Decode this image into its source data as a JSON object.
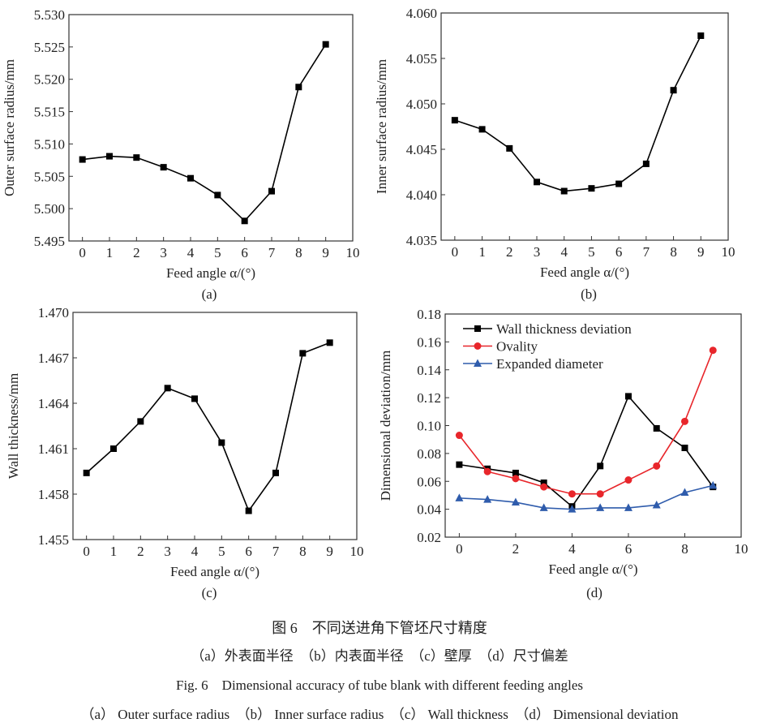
{
  "chart_data": [
    {
      "type": "line",
      "panel": "(a)",
      "xlabel": "Feed angle  α/(°)",
      "ylabel": "Outer surface radius/mm",
      "x": [
        0,
        1,
        2,
        3,
        4,
        5,
        6,
        7,
        8,
        9
      ],
      "xlim": [
        -0.5,
        10
      ],
      "xticks": [
        0,
        1,
        2,
        3,
        4,
        5,
        6,
        7,
        8,
        9,
        10
      ],
      "ylim": [
        5.495,
        5.53
      ],
      "yticks": [
        "5.495",
        "5.500",
        "5.505",
        "5.510",
        "5.515",
        "5.520",
        "5.525",
        "5.530"
      ],
      "grid": false,
      "series": [
        {
          "values": [
            5.5076,
            5.5081,
            5.5079,
            5.5064,
            5.5047,
            5.5021,
            5.4981,
            5.5027,
            5.5188,
            5.5254
          ],
          "color": "#000000",
          "marker": "square"
        }
      ]
    },
    {
      "type": "line",
      "panel": "(b)",
      "xlabel": "Feed angle  α/(°)",
      "ylabel": "Inner surface radius/mm",
      "x": [
        0,
        1,
        2,
        3,
        4,
        5,
        6,
        7,
        8,
        9
      ],
      "xlim": [
        -0.5,
        10
      ],
      "xticks": [
        0,
        1,
        2,
        3,
        4,
        5,
        6,
        7,
        8,
        9,
        10
      ],
      "ylim": [
        4.035,
        4.06
      ],
      "yticks": [
        "4.035",
        "4.040",
        "4.045",
        "4.050",
        "4.055",
        "4.060"
      ],
      "grid": false,
      "series": [
        {
          "values": [
            4.0482,
            4.0472,
            4.0451,
            4.0414,
            4.0404,
            4.0407,
            4.0412,
            4.0434,
            4.0515,
            4.0575
          ],
          "color": "#000000",
          "marker": "square"
        }
      ]
    },
    {
      "type": "line",
      "panel": "(c)",
      "xlabel": "Feed angle  α/(°)",
      "ylabel": "Wall thickness/mm",
      "x": [
        0,
        1,
        2,
        3,
        4,
        5,
        6,
        7,
        8,
        9
      ],
      "xlim": [
        -0.5,
        10
      ],
      "xticks": [
        0,
        1,
        2,
        3,
        4,
        5,
        6,
        7,
        8,
        9,
        10
      ],
      "ylim": [
        1.455,
        1.47
      ],
      "yticks": [
        "1.455",
        "1.458",
        "1.461",
        "1.464",
        "1.467",
        "1.470"
      ],
      "grid": false,
      "series": [
        {
          "values": [
            1.4594,
            1.461,
            1.4628,
            1.465,
            1.4643,
            1.4614,
            1.4569,
            1.4594,
            1.4673,
            1.468
          ],
          "color": "#000000",
          "marker": "square"
        }
      ]
    },
    {
      "type": "line",
      "panel": "(d)",
      "xlabel": "Feed angle  α/(°)",
      "ylabel": "Dimensional deviation/mm",
      "x": [
        0,
        1,
        2,
        3,
        4,
        5,
        6,
        7,
        8,
        9
      ],
      "xlim": [
        -0.5,
        10
      ],
      "xticks": [
        0,
        2,
        4,
        6,
        8,
        10
      ],
      "ylim": [
        0.02,
        0.18
      ],
      "yticks": [
        "0.02",
        "0.04",
        "0.06",
        "0.08",
        "0.10",
        "0.12",
        "0.14",
        "0.16",
        "0.18"
      ],
      "grid": false,
      "legend": "top-left",
      "series": [
        {
          "name": "Wall thickness deviation",
          "values": [
            0.072,
            0.069,
            0.066,
            0.059,
            0.042,
            0.071,
            0.121,
            0.098,
            0.084,
            0.056
          ],
          "color": "#000000",
          "marker": "square"
        },
        {
          "name": "Ovality",
          "values": [
            0.093,
            0.067,
            0.062,
            0.056,
            0.051,
            0.051,
            0.061,
            0.071,
            0.103,
            0.154
          ],
          "color": "#e8262b",
          "marker": "circle"
        },
        {
          "name": "Expanded diameter",
          "values": [
            0.048,
            0.047,
            0.045,
            0.041,
            0.04,
            0.041,
            0.041,
            0.043,
            0.052,
            0.057
          ],
          "color": "#2f5cac",
          "marker": "triangle"
        }
      ]
    }
  ],
  "caption": {
    "cn_title": "图 6　不同送进角下管坯尺寸精度",
    "cn_sub": "（a）外表面半径　（b）内表面半径　（c）壁厚　（d）尺寸偏差",
    "en_title": "Fig. 6　Dimensional accuracy of tube blank with different feeding angles",
    "en_sub": "（a） Outer surface radius　（b） Inner surface radius　（c） Wall thickness　（d） Dimensional deviation"
  }
}
